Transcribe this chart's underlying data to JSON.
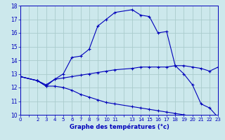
{
  "xlabel": "Graphe des températures (°c)",
  "bg_color": "#cce8ec",
  "grid_color": "#aacccc",
  "line_color": "#0000bb",
  "axis_color": "#0000bb",
  "xlim": [
    0,
    23
  ],
  "ylim": [
    10,
    18
  ],
  "yticks": [
    10,
    11,
    12,
    13,
    14,
    15,
    16,
    17,
    18
  ],
  "xticks": [
    0,
    1,
    2,
    3,
    4,
    5,
    6,
    7,
    8,
    9,
    10,
    11,
    12,
    13,
    14,
    15,
    16,
    17,
    18,
    19,
    20,
    21,
    22,
    23
  ],
  "xtick_labels": [
    "0",
    "",
    "2",
    "3",
    "4",
    "5",
    "6",
    "7",
    "8",
    "9",
    "10",
    "11",
    "",
    "13",
    "14",
    "15",
    "16",
    "17",
    "18",
    "19",
    "20",
    "21",
    "22",
    "23"
  ],
  "series": [
    {
      "x": [
        0,
        2,
        3,
        4,
        5,
        6,
        7,
        8,
        9,
        10,
        11,
        13,
        14,
        15,
        16,
        17,
        18,
        19,
        20,
        21,
        22,
        23
      ],
      "y": [
        12.8,
        12.5,
        12.1,
        12.6,
        13.0,
        14.2,
        14.3,
        14.8,
        16.5,
        17.0,
        17.5,
        17.7,
        17.3,
        17.2,
        16.0,
        16.1,
        13.6,
        13.0,
        12.2,
        10.8,
        10.5,
        9.8
      ]
    },
    {
      "x": [
        0,
        2,
        3,
        4,
        5,
        6,
        7,
        8,
        9,
        10,
        11,
        13,
        14,
        15,
        16,
        17,
        18,
        19,
        20,
        21,
        22,
        23
      ],
      "y": [
        12.8,
        12.5,
        12.2,
        12.6,
        12.7,
        12.8,
        12.9,
        13.0,
        13.1,
        13.2,
        13.3,
        13.4,
        13.5,
        13.5,
        13.5,
        13.5,
        13.6,
        13.6,
        13.5,
        13.4,
        13.2,
        13.5
      ]
    },
    {
      "x": [
        0,
        2,
        3,
        4,
        5,
        6,
        7,
        8,
        9,
        10,
        11,
        13,
        14,
        15,
        16,
        17,
        18,
        19,
        20,
        21,
        22,
        23
      ],
      "y": [
        12.8,
        12.5,
        12.1,
        12.1,
        12.0,
        11.8,
        11.5,
        11.3,
        11.1,
        10.9,
        10.8,
        10.6,
        10.5,
        10.4,
        10.3,
        10.2,
        10.1,
        10.0,
        9.9,
        9.85,
        9.82,
        9.8
      ]
    }
  ],
  "xlabel_fontsize": 6.0,
  "ytick_fontsize": 5.5,
  "xtick_fontsize": 5.0
}
